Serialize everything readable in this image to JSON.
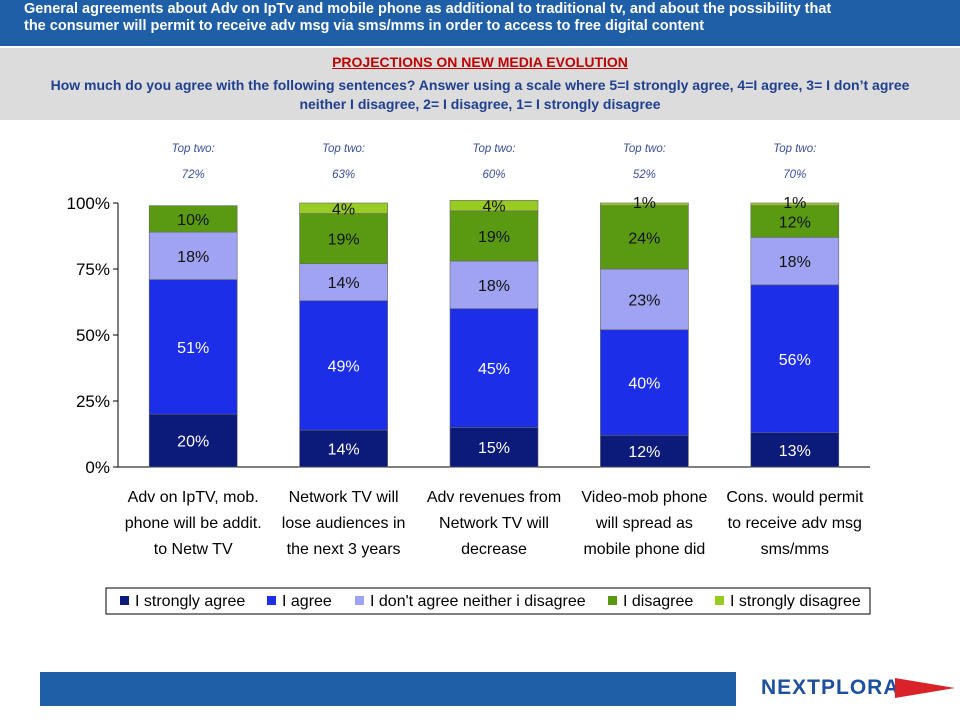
{
  "header": {
    "line1": "General agreements about Adv on IpTv and mobile phone as additional to traditional tv, and about the possibility that",
    "line2": "the consumer will permit to receive adv msg via sms/mms in order to access to free digital content"
  },
  "section_title": "PROJECTIONS ON NEW MEDIA EVOLUTION",
  "question": {
    "line1": "How much do you agree with the following sentences? Answer using a scale where 5=I strongly agree, 4=I agree, 3= I don’t agree",
    "line2": "neither I disagree, 2= I disagree, 1= I strongly disagree"
  },
  "top_two_label": "Top two:",
  "logo_text": "NEXTPLORA",
  "chart_data": {
    "type": "bar",
    "stacked": true,
    "categories": [
      [
        "Adv on IpTV, mob.",
        "phone will be addit.",
        "to Netw TV"
      ],
      [
        "Network TV will",
        "lose audiences in",
        "the next 3 years"
      ],
      [
        "Adv revenues from",
        "Network TV will",
        "decrease"
      ],
      [
        "Video-mob phone",
        "will spread as",
        "mobile phone did"
      ],
      [
        "Cons. would permit",
        "to receive adv msg",
        "sms/mms"
      ]
    ],
    "top_two": [
      "72%",
      "63%",
      "60%",
      "52%",
      "70%"
    ],
    "series": [
      {
        "name": "I strongly agree",
        "color": "#0c1a7a",
        "values": [
          20,
          14,
          15,
          12,
          13
        ]
      },
      {
        "name": "I agree",
        "color": "#1c2ee8",
        "values": [
          51,
          49,
          45,
          40,
          56
        ]
      },
      {
        "name": "I don't agree neither i disagree",
        "color": "#9fa3f2",
        "values": [
          18,
          14,
          18,
          23,
          18
        ]
      },
      {
        "name": "I disagree",
        "color": "#5a9a12",
        "values": [
          10,
          19,
          19,
          24,
          12
        ]
      },
      {
        "name": "I strongly disagree",
        "color": "#99cc22",
        "values": [
          0,
          4,
          4,
          1,
          1
        ]
      }
    ],
    "bar_labels": [
      [
        "20%",
        "51%",
        "18%",
        "10%",
        ""
      ],
      [
        "14%",
        "49%",
        "14%",
        "19%",
        "4%"
      ],
      [
        "15%",
        "45%",
        "18%",
        "19%",
        "4%"
      ],
      [
        "12%",
        "40%",
        "23%",
        "24%",
        "1%"
      ],
      [
        "13%",
        "56%",
        "18%",
        "12%",
        "1%"
      ]
    ],
    "ylim": [
      0,
      100
    ],
    "yticks": [
      0,
      25,
      50,
      75,
      100
    ],
    "ytick_labels": [
      "0%",
      "25%",
      "50%",
      "75%",
      "100%"
    ],
    "xlabel": "",
    "ylabel": "",
    "legend_position": "bottom"
  },
  "colors": {
    "banner": "#1f5fa8",
    "title_red": "#c00000",
    "question_blue": "#1f3f8f",
    "top_two_text": "#3a4f9a"
  }
}
